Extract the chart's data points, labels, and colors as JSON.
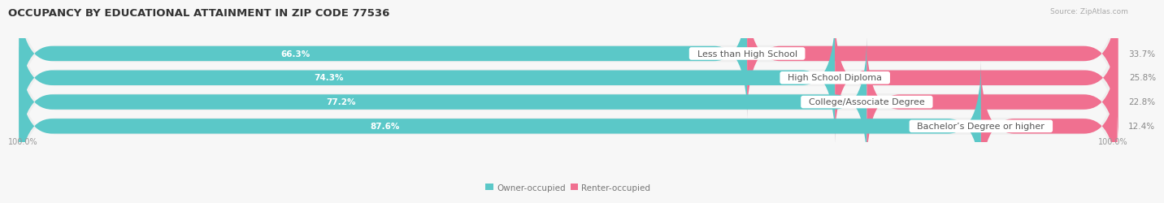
{
  "title": "OCCUPANCY BY EDUCATIONAL ATTAINMENT IN ZIP CODE 77536",
  "source": "Source: ZipAtlas.com",
  "categories": [
    "Less than High School",
    "High School Diploma",
    "College/Associate Degree",
    "Bachelor’s Degree or higher"
  ],
  "owner_pct": [
    66.3,
    74.3,
    77.2,
    87.6
  ],
  "renter_pct": [
    33.7,
    25.8,
    22.8,
    12.4
  ],
  "owner_color": "#5BC8C8",
  "renter_color": "#F07090",
  "bar_bg_color": "#e4e4e4",
  "background_color": "#f7f7f7",
  "row_bg_color": "#efefef",
  "title_fontsize": 9.5,
  "label_fontsize": 8,
  "pct_fontsize": 7.5,
  "tick_fontsize": 7,
  "source_fontsize": 6.5
}
